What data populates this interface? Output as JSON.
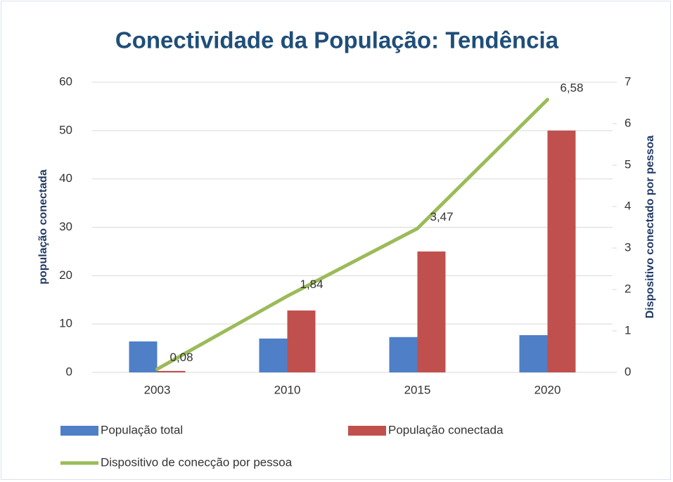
{
  "chart_data": {
    "type": "bar_line",
    "title": "Conectividade da População: Tendência",
    "ylabel": "população conectada",
    "y2label": "Dispositivo conectado por pessoa",
    "categories": [
      "2003",
      "2010",
      "2015",
      "2020"
    ],
    "series": [
      {
        "name": "População total",
        "color": "#4f7fc6",
        "type": "bar",
        "values": [
          6.4,
          7.0,
          7.3,
          7.7
        ]
      },
      {
        "name": "População conectada",
        "color": "#c0504d",
        "type": "bar",
        "values": [
          0.3,
          12.8,
          25,
          50
        ]
      },
      {
        "name": "Dispositivo de conecção por pessoa",
        "color": "#9bbb59",
        "type": "line",
        "axis": "y2",
        "values": [
          0.08,
          1.84,
          3.47,
          6.58
        ],
        "value_labels": [
          "0,08",
          "1,84",
          "3,47",
          "6,58"
        ]
      }
    ],
    "ylim": [
      0,
      60
    ],
    "yticks": [
      0,
      10,
      20,
      30,
      40,
      50,
      60
    ],
    "y2lim": [
      0,
      7
    ],
    "y2ticks": [
      0,
      1,
      2,
      3,
      4,
      5,
      6,
      7
    ],
    "grid": true
  }
}
